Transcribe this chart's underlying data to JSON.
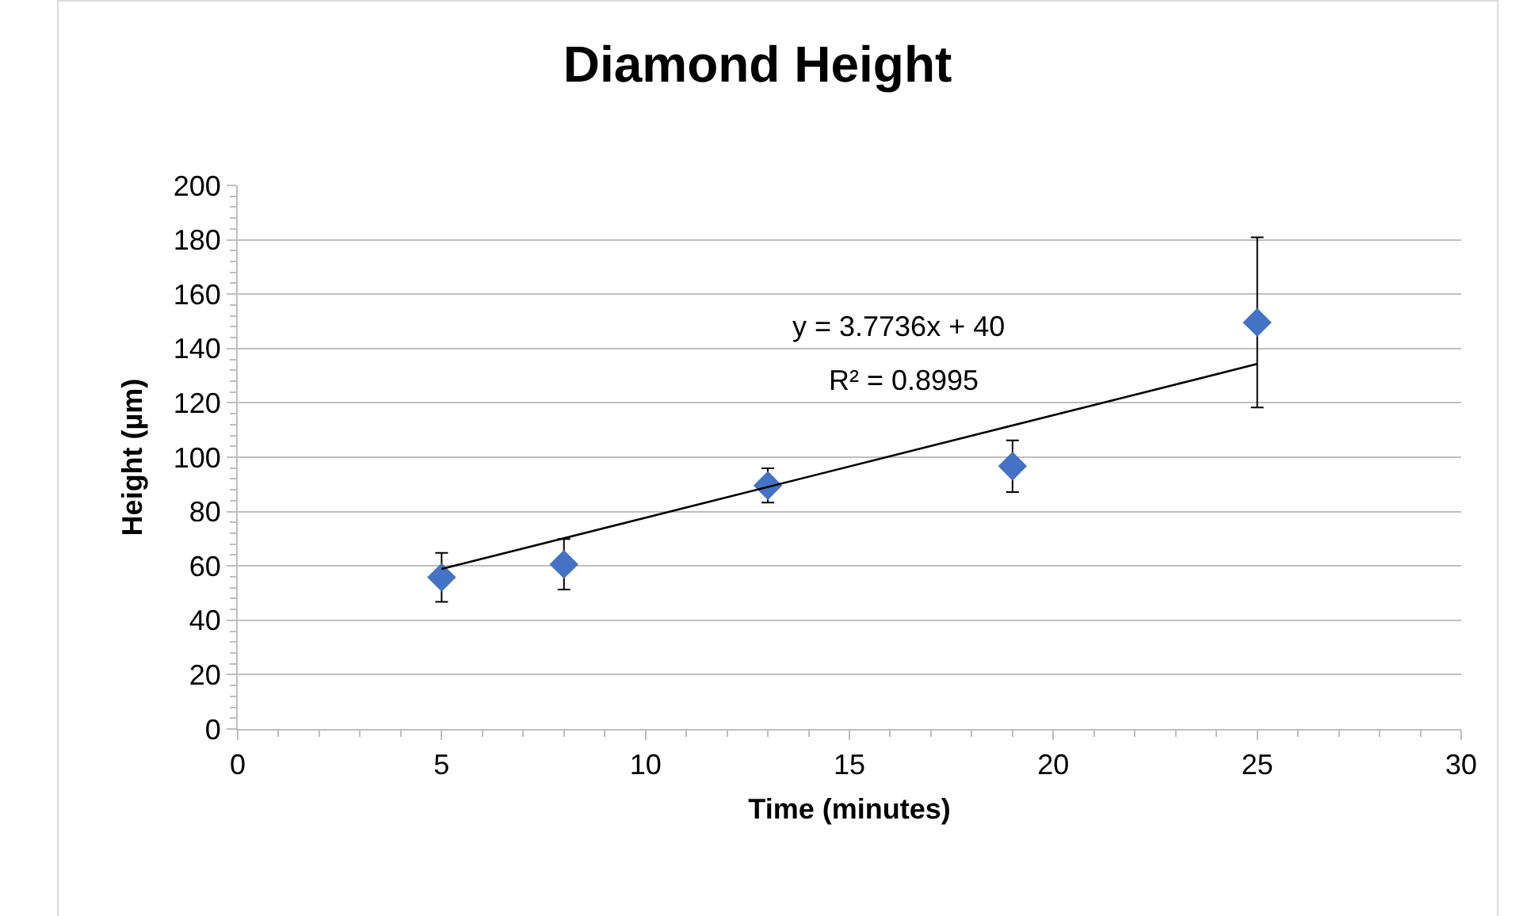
{
  "chart_data": {
    "type": "scatter",
    "title": "Diamond Height",
    "xlabel": "Time (minutes)",
    "ylabel": "Height (µm)",
    "x": [
      5,
      8,
      13,
      19,
      25
    ],
    "series": [
      {
        "color": "#4472c4",
        "values": [
          55.8,
          60.6,
          89.6,
          96.7,
          149.6
        ],
        "errors": [
          9,
          9.3,
          6.3,
          9.5,
          31.3
        ],
        "marker": "diamond"
      },
      {
        "type": "line",
        "color": "#000000",
        "x": [
          5,
          25
        ],
        "values": [
          58.9,
          134.3
        ],
        "marker": "none",
        "line_style": "solid"
      }
    ],
    "annotations": [
      "y = 3.7736x + 40",
      "R² = 0.8995"
    ],
    "xlim": [
      0,
      30
    ],
    "xticks": [
      0,
      5,
      10,
      15,
      20,
      25,
      30
    ],
    "ylim": [
      0,
      200
    ],
    "yticks": [
      0,
      20,
      40,
      60,
      80,
      100,
      120,
      140,
      160,
      180,
      200
    ],
    "grid": "y"
  }
}
